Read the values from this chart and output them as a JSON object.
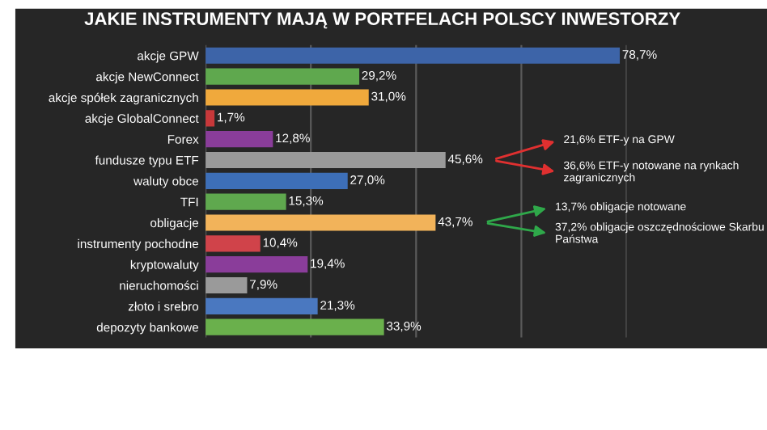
{
  "chart_data": {
    "type": "bar",
    "orientation": "horizontal",
    "title": "JAKIE INSTRUMENTY MAJĄ W PORTFELACH POLSCY INWESTORZY",
    "categories": [
      "akcje GPW",
      "akcje NewConnect",
      "akcje spółek zagranicznych",
      "akcje GlobalConnect",
      "Forex",
      "fundusze typu ETF",
      "waluty obce",
      "TFI",
      "obligacje",
      "instrumenty pochodne",
      "kryptowaluty",
      "nieruchomości",
      "złoto i srebro",
      "depozyty bankowe"
    ],
    "values": [
      78.7,
      29.2,
      31.0,
      1.7,
      12.8,
      45.6,
      27.0,
      15.3,
      43.7,
      10.4,
      19.4,
      7.9,
      21.3,
      33.9
    ],
    "value_labels": [
      "78,7%",
      "29,2%",
      "31,0%",
      "1,7%",
      "12,8%",
      "45,6%",
      "27,0%",
      "15,3%",
      "43,7%",
      "10,4%",
      "19,4%",
      "7,9%",
      "21,3%",
      "33,9%"
    ],
    "colors": [
      "#3d64a8",
      "#5fa84e",
      "#f0a93c",
      "#c8383a",
      "#8a3d9a",
      "#9a9a9a",
      "#3d6fb8",
      "#5fa84e",
      "#f2b35a",
      "#d0434a",
      "#8a3d9a",
      "#9a9a9a",
      "#4a78c0",
      "#6ab04c"
    ],
    "xlim": [
      0,
      80
    ],
    "xticks": [
      {
        "value": 0,
        "label": null
      },
      {
        "value": 20,
        "label": null
      },
      {
        "value": 40,
        "label": null
      },
      {
        "value": 60,
        "label": null
      },
      {
        "value": 80,
        "label": null
      }
    ],
    "grid": "x",
    "tick_labels": "y",
    "annotations": [
      "21,6% ETF-y na GPW",
      "36,6% ETF-y notowane na rynkach zagranicznych",
      "13,7% obligacje notowane",
      "37,2% obligacje oszczędnościowe Skarbu Państwa"
    ]
  }
}
